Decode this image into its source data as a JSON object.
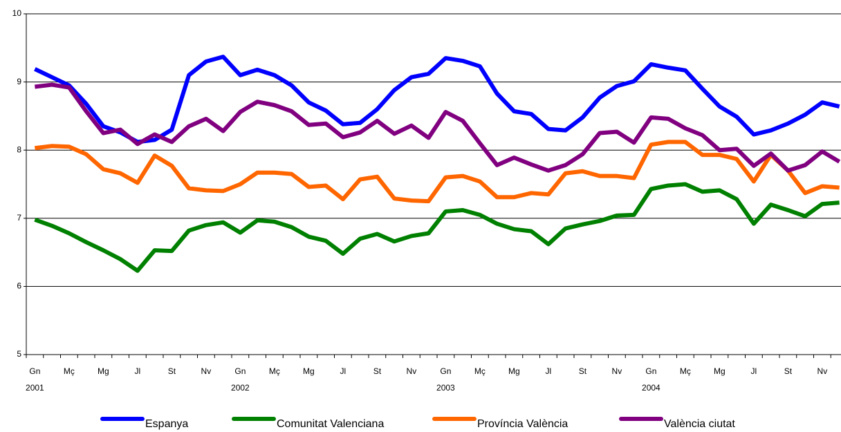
{
  "chart_data": {
    "type": "line",
    "categories": [
      "Gn",
      null,
      "Mç",
      null,
      "Mg",
      null,
      "Jl",
      null,
      "St",
      null,
      "Nv",
      null,
      "Gn",
      null,
      "Mç",
      null,
      "Mg",
      null,
      "Jl",
      null,
      "St",
      null,
      "Nv",
      null,
      "Gn",
      null,
      "Mç",
      null,
      "Mg",
      null,
      "Jl",
      null,
      "St",
      null,
      "Nv",
      null,
      "Gn",
      null,
      "Mç",
      null,
      "Mg",
      null,
      "Jl",
      null,
      "St",
      null,
      "Nv",
      null
    ],
    "year_labels": [
      "2001",
      "2002",
      "2003",
      "2004"
    ],
    "ylim": [
      5,
      10
    ],
    "yticks": [
      5,
      6,
      7,
      8,
      9,
      10
    ],
    "grid": true,
    "legend": "bottom",
    "series": [
      {
        "name": "Espanya",
        "color": "#0000ff",
        "values": [
          9.19,
          9.07,
          8.95,
          8.68,
          8.35,
          8.26,
          8.12,
          8.15,
          8.3,
          9.1,
          9.3,
          9.37,
          9.1,
          9.18,
          9.1,
          8.95,
          8.7,
          8.58,
          8.38,
          8.4,
          8.6,
          8.88,
          9.07,
          9.12,
          9.35,
          9.31,
          9.23,
          8.83,
          8.57,
          8.53,
          8.31,
          8.29,
          8.48,
          8.77,
          8.94,
          9.01,
          9.26,
          9.21,
          9.17,
          8.9,
          8.64,
          8.49,
          8.23,
          8.29,
          8.39,
          8.52,
          8.7,
          8.64
        ]
      },
      {
        "name": "Comunitat Valenciana",
        "color": "#008000",
        "values": [
          6.98,
          6.89,
          6.78,
          6.65,
          6.53,
          6.4,
          6.23,
          6.53,
          6.52,
          6.82,
          6.9,
          6.94,
          6.79,
          6.97,
          6.95,
          6.87,
          6.73,
          6.67,
          6.48,
          6.7,
          6.77,
          6.66,
          6.74,
          6.78,
          7.1,
          7.12,
          7.05,
          6.92,
          6.84,
          6.81,
          6.62,
          6.85,
          6.91,
          6.96,
          7.04,
          7.05,
          7.43,
          7.48,
          7.5,
          7.39,
          7.41,
          7.28,
          6.92,
          7.2,
          7.12,
          7.03,
          7.21,
          7.23
        ]
      },
      {
        "name": "Província València",
        "color": "#ff6600",
        "values": [
          8.03,
          8.06,
          8.05,
          7.94,
          7.72,
          7.66,
          7.52,
          7.92,
          7.77,
          7.44,
          7.41,
          7.4,
          7.5,
          7.67,
          7.67,
          7.65,
          7.46,
          7.48,
          7.28,
          7.57,
          7.61,
          7.29,
          7.26,
          7.25,
          7.6,
          7.62,
          7.54,
          7.31,
          7.31,
          7.37,
          7.35,
          7.66,
          7.69,
          7.62,
          7.62,
          7.59,
          8.08,
          8.12,
          8.12,
          7.93,
          7.93,
          7.87,
          7.54,
          7.93,
          7.7,
          7.37,
          7.47,
          7.45
        ]
      },
      {
        "name": "València ciutat",
        "color": "#800080",
        "values": [
          8.93,
          8.96,
          8.92,
          8.57,
          8.25,
          8.3,
          8.09,
          8.23,
          8.12,
          8.35,
          8.46,
          8.28,
          8.56,
          8.71,
          8.66,
          8.57,
          8.37,
          8.39,
          8.19,
          8.26,
          8.43,
          8.24,
          8.36,
          8.18,
          8.56,
          8.43,
          8.1,
          7.78,
          7.89,
          7.79,
          7.7,
          7.78,
          7.94,
          8.25,
          8.27,
          8.11,
          8.48,
          8.46,
          8.32,
          8.22,
          8.0,
          8.02,
          7.77,
          7.95,
          7.7,
          7.78,
          7.98,
          7.83
        ]
      }
    ]
  }
}
